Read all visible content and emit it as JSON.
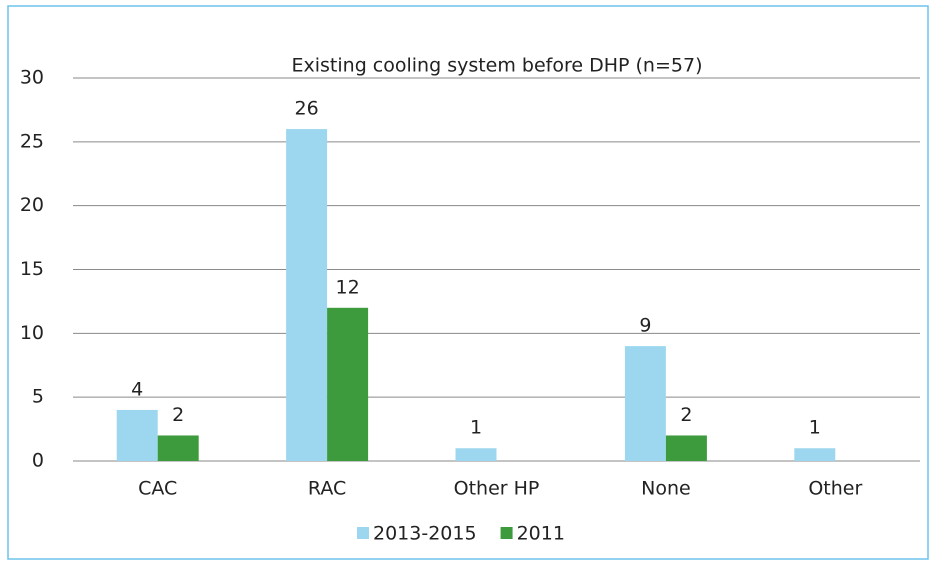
{
  "chart_data": {
    "type": "bar",
    "title": "Existing cooling system before DHP (n=57)",
    "categories": [
      "CAC",
      "RAC",
      "Other HP",
      "None",
      "Other"
    ],
    "series": [
      {
        "name": "2013-2015",
        "color": "#9dd7ef",
        "values": [
          4,
          26,
          1,
          9,
          1
        ]
      },
      {
        "name": "2011",
        "color": "#3d9b3d",
        "values": [
          2,
          12,
          null,
          2,
          null
        ]
      }
    ],
    "ylim": [
      0,
      30
    ],
    "yticks": [
      0,
      5,
      10,
      15,
      20,
      25,
      30
    ],
    "grid": true,
    "legend": "bottom"
  }
}
